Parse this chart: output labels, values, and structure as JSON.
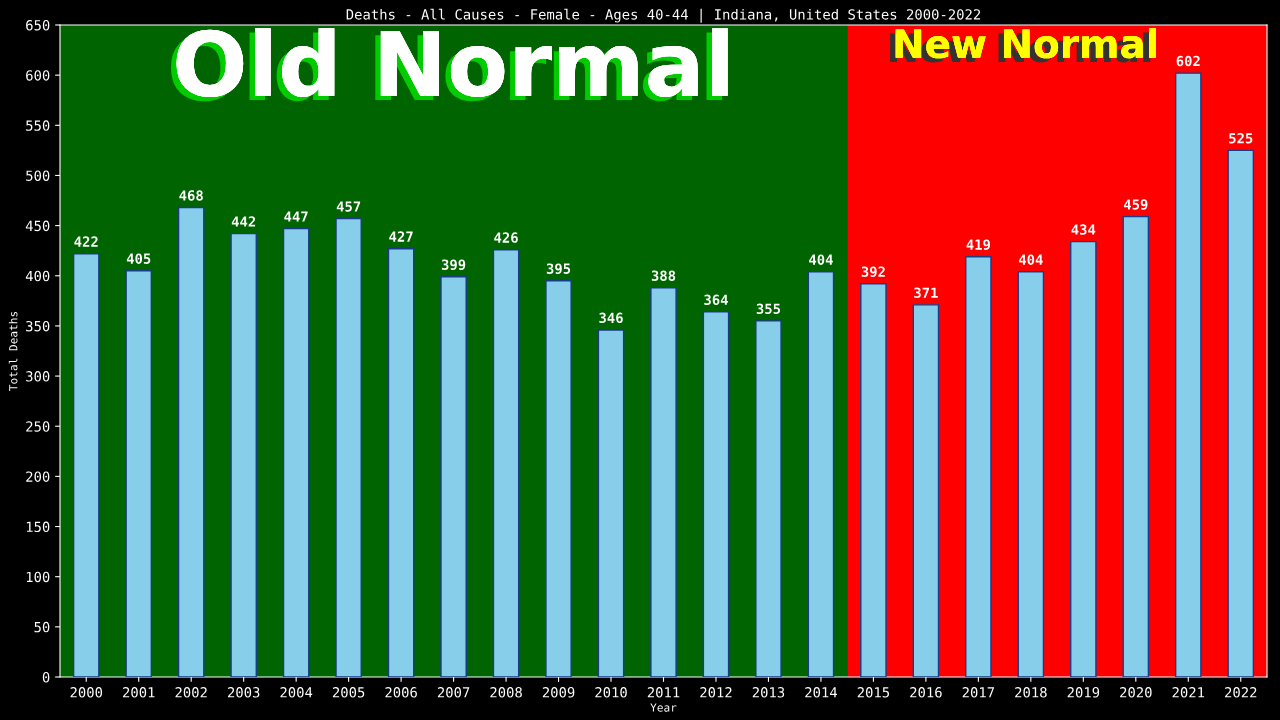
{
  "chart_data": {
    "type": "bar",
    "title": "Deaths - All Causes - Female - Ages 40-44 | Indiana, United States 2000-2022",
    "xlabel": "Year",
    "ylabel": "Total Deaths",
    "categories": [
      "2000",
      "2001",
      "2002",
      "2003",
      "2004",
      "2005",
      "2006",
      "2007",
      "2008",
      "2009",
      "2010",
      "2011",
      "2012",
      "2013",
      "2014",
      "2015",
      "2016",
      "2017",
      "2018",
      "2019",
      "2020",
      "2021",
      "2022"
    ],
    "values": [
      422,
      405,
      468,
      442,
      447,
      457,
      427,
      399,
      426,
      395,
      346,
      388,
      364,
      355,
      404,
      392,
      371,
      419,
      404,
      434,
      459,
      602,
      525
    ],
    "color": "#87ceeb",
    "ylim": [
      0,
      650
    ],
    "yticks": [
      0,
      50,
      100,
      150,
      200,
      250,
      300,
      350,
      400,
      450,
      500,
      550,
      600,
      650
    ],
    "grid": false,
    "data_labels": true,
    "bands": [
      {
        "axis": "x",
        "from": "2000",
        "to": "2014",
        "label": "Old Normal",
        "color": "#006400"
      },
      {
        "axis": "x",
        "from": "2015",
        "to": "2022",
        "label": "New Normal",
        "color": "#ff0000"
      }
    ]
  }
}
